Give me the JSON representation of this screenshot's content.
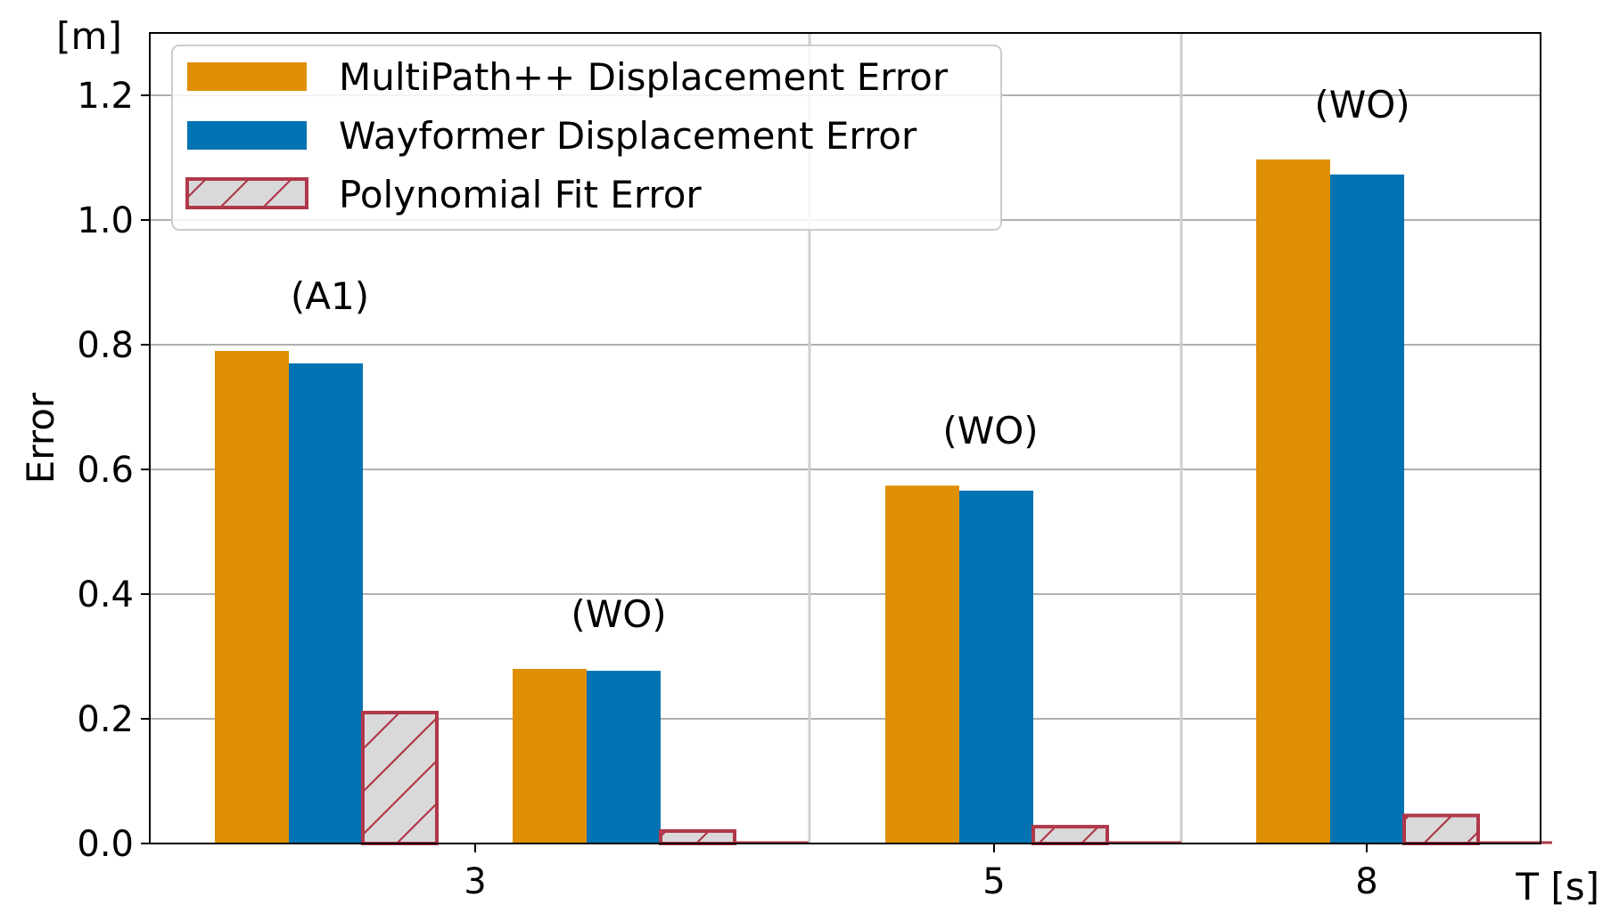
{
  "chart_data": {
    "type": "bar",
    "title": "",
    "xlabel": "T [s]",
    "ylabel": "Error",
    "yunit": "[m]",
    "ylim": [
      0,
      1.3
    ],
    "yticks": [
      "0.0",
      "0.2",
      "0.4",
      "0.6",
      "0.8",
      "1.0",
      "1.2"
    ],
    "xticks": [
      "3",
      "5",
      "8"
    ],
    "grid": true,
    "legend_position": "top-left",
    "series": [
      {
        "name": "MultiPath++ Displacement Error",
        "color": "#DE8F05",
        "style": "solid"
      },
      {
        "name": "Wayformer Displacement Error",
        "color": "#0173B2",
        "style": "solid"
      },
      {
        "name": "Polynomial Fit Error",
        "color": "#D9D9D9",
        "edge": "#B0384A",
        "style": "hatched"
      }
    ],
    "groups": [
      {
        "x": "3",
        "label": "(A1)",
        "values": [
          0.79,
          0.77,
          0.21
        ]
      },
      {
        "x": "3",
        "label": "(WO)",
        "values": [
          0.28,
          0.277,
          0.02
        ]
      },
      {
        "x": "5",
        "label": "(WO)",
        "values": [
          0.574,
          0.566,
          0.027
        ]
      },
      {
        "x": "8",
        "label": "(WO)",
        "values": [
          1.097,
          1.073,
          0.045
        ]
      }
    ]
  }
}
